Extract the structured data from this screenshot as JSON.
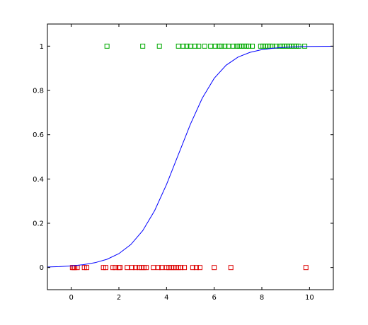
{
  "chart_data": {
    "type": "scatter",
    "title": "",
    "xlabel": "",
    "ylabel": "",
    "xlim": [
      -1,
      11
    ],
    "ylim": [
      -0.1,
      1.1
    ],
    "xticks": [
      0,
      2,
      4,
      6,
      8,
      10
    ],
    "yticks": [
      0,
      0.2,
      0.4,
      0.6,
      0.8,
      1
    ],
    "xtick_labels": [
      "0",
      "2",
      "4",
      "6",
      "8",
      "10"
    ],
    "ytick_labels": [
      "0",
      "0.2",
      "0.4",
      "0.6",
      "0.8",
      "1"
    ],
    "grid": false,
    "series": [
      {
        "marker": "square",
        "color": "#00aa00",
        "x": [
          1.5,
          3.0,
          3.7,
          4.5,
          4.7,
          4.85,
          5.0,
          5.2,
          5.35,
          5.6,
          5.85,
          6.05,
          6.2,
          6.3,
          6.45,
          6.6,
          6.8,
          6.95,
          7.05,
          7.15,
          7.25,
          7.35,
          7.45,
          7.6,
          7.95,
          8.05,
          8.15,
          8.25,
          8.35,
          8.45,
          8.6,
          8.75,
          8.85,
          8.95,
          9.05,
          9.15,
          9.25,
          9.35,
          9.45,
          9.55,
          9.8
        ],
        "y": [
          1,
          1,
          1,
          1,
          1,
          1,
          1,
          1,
          1,
          1,
          1,
          1,
          1,
          1,
          1,
          1,
          1,
          1,
          1,
          1,
          1,
          1,
          1,
          1,
          1,
          1,
          1,
          1,
          1,
          1,
          1,
          1,
          1,
          1,
          1,
          1,
          1,
          1,
          1,
          1,
          1
        ]
      },
      {
        "marker": "square",
        "color": "#dd0000",
        "x": [
          0.05,
          0.1,
          0.15,
          0.25,
          0.55,
          0.65,
          1.35,
          1.45,
          1.75,
          1.85,
          2.0,
          2.05,
          2.35,
          2.55,
          2.7,
          2.85,
          2.95,
          3.05,
          3.15,
          3.45,
          3.65,
          3.8,
          4.0,
          4.1,
          4.2,
          4.3,
          4.4,
          4.5,
          4.6,
          4.75,
          5.1,
          5.25,
          5.4,
          6.0,
          6.7,
          9.85
        ],
        "y": [
          0,
          0,
          0,
          0,
          0,
          0,
          0,
          0,
          0,
          0,
          0,
          0,
          0,
          0,
          0,
          0,
          0,
          0,
          0,
          0,
          0,
          0,
          0,
          0,
          0,
          0,
          0,
          0,
          0,
          0,
          0,
          0,
          0,
          0,
          0,
          0
        ]
      },
      {
        "type": "line",
        "color": "#0000ff",
        "x": [
          -1,
          -0.5,
          0,
          0.5,
          1,
          1.5,
          2,
          2.5,
          3,
          3.5,
          4,
          4.5,
          5,
          5.5,
          6,
          6.5,
          7,
          7.5,
          8,
          8.5,
          9,
          9.5,
          10,
          10.5,
          11
        ],
        "y": [
          0.0025,
          0.0043,
          0.0074,
          0.0128,
          0.0219,
          0.0373,
          0.0628,
          0.1037,
          0.1666,
          0.257,
          0.3752,
          0.5112,
          0.647,
          0.7652,
          0.8548,
          0.914,
          0.9506,
          0.972,
          0.9843,
          0.9912,
          0.9951,
          0.9973,
          0.9985,
          0.9991,
          0.9995
        ]
      }
    ]
  }
}
